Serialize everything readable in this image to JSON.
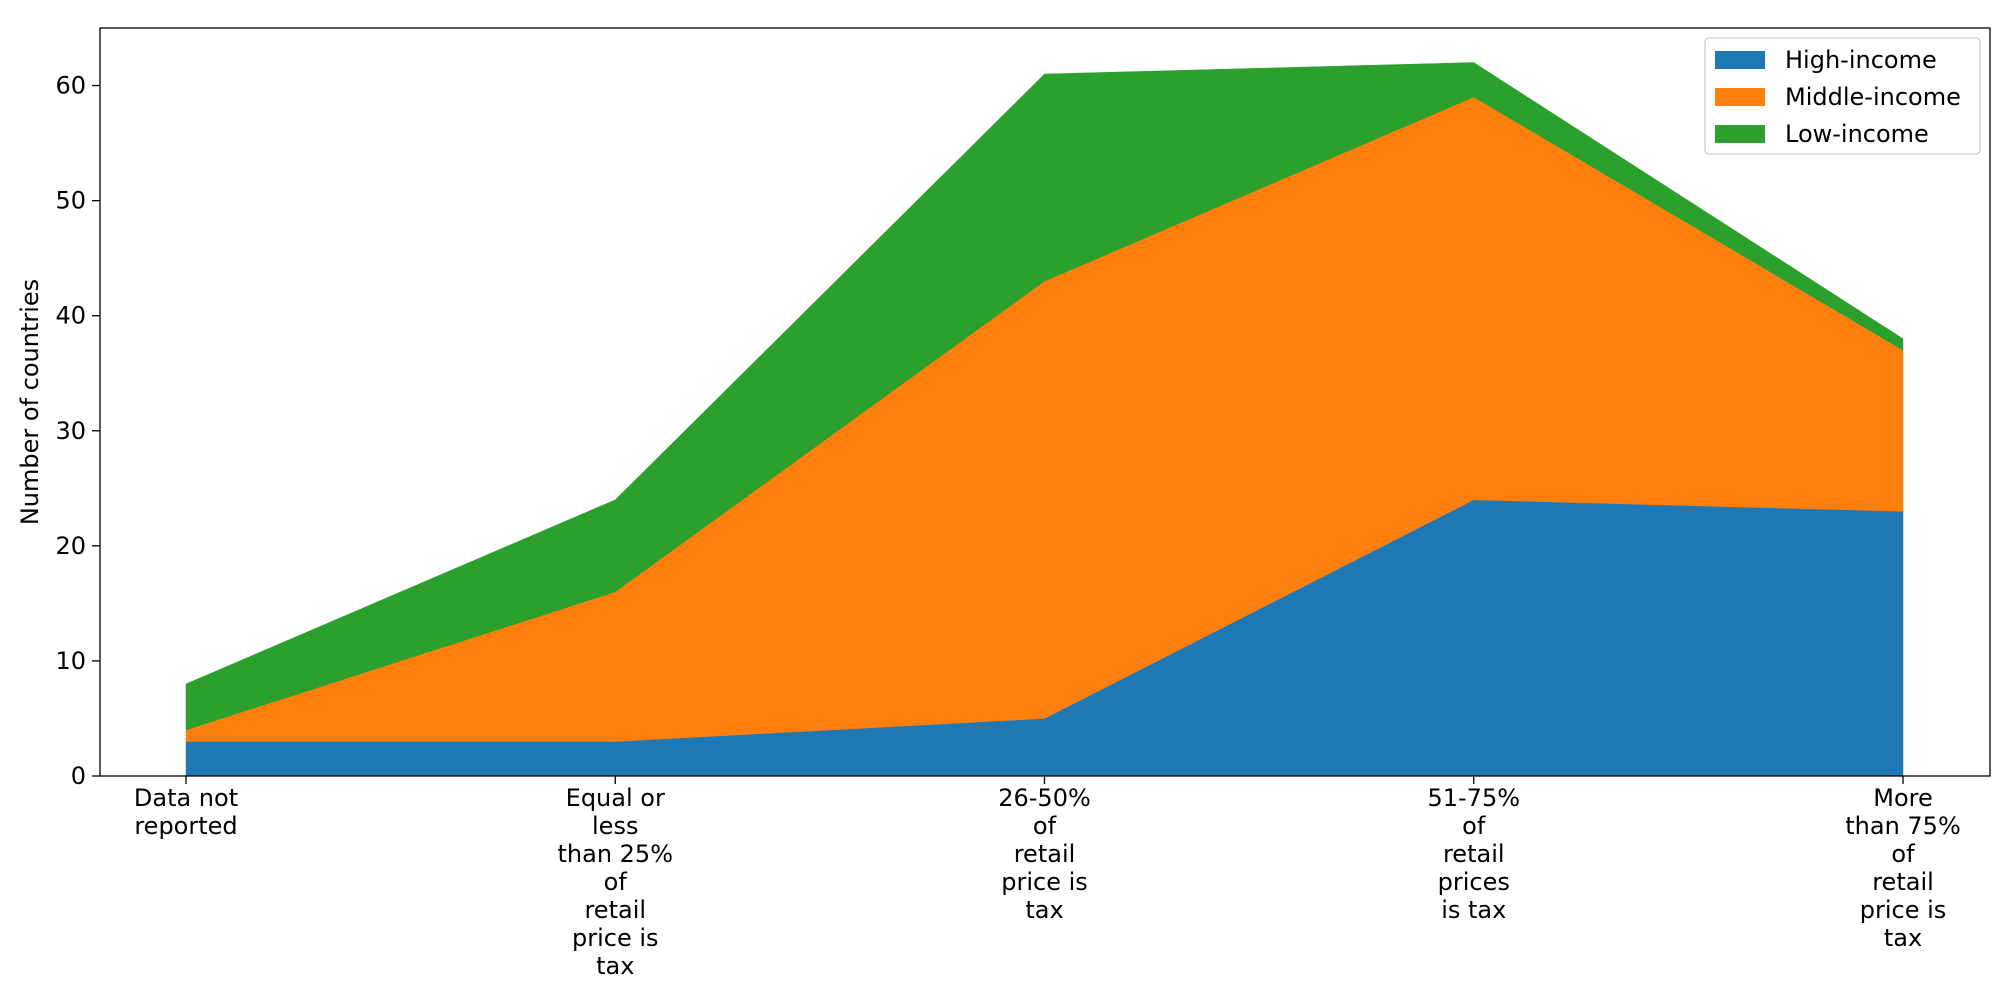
{
  "chart_data": {
    "type": "area",
    "stacked": true,
    "title": "",
    "xlabel": "",
    "ylabel": "Number of countries",
    "ylim": [
      0,
      65
    ],
    "yticks": [
      0,
      10,
      20,
      30,
      40,
      50,
      60
    ],
    "grid": false,
    "legend_position": "top-right",
    "categories": [
      [
        "Data not",
        "reported"
      ],
      [
        "Equal or",
        "less",
        "than 25%",
        "of",
        "retail",
        "price is",
        "tax"
      ],
      [
        "26-50%",
        "of",
        "retail",
        "price is",
        "tax"
      ],
      [
        "51-75%",
        "of",
        "retail",
        "prices",
        "is tax"
      ],
      [
        "More",
        "than 75%",
        "of",
        "retail",
        "price is",
        "tax"
      ]
    ],
    "series": [
      {
        "name": "High-income",
        "color": "#1f77b4",
        "values": [
          3,
          3,
          5,
          24,
          23
        ]
      },
      {
        "name": "Middle-income",
        "color": "#ff7f0e",
        "values": [
          1,
          13,
          38,
          35,
          14
        ]
      },
      {
        "name": "Low-income",
        "color": "#2ca02c",
        "values": [
          4,
          8,
          18,
          3,
          1
        ]
      }
    ]
  }
}
